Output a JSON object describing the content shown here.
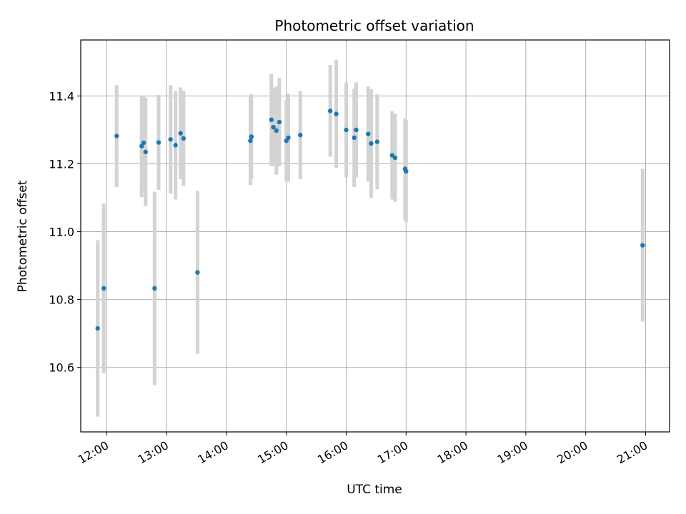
{
  "chart_data": {
    "type": "scatter",
    "title": "Photometric offset variation",
    "xlabel": "UTC time",
    "ylabel": "Photometric offset",
    "xlim": [
      "11:34",
      "21:24"
    ],
    "ylim": [
      10.41,
      11.565
    ],
    "x_ticks": [
      "12:00",
      "13:00",
      "14:00",
      "15:00",
      "16:00",
      "17:00",
      "18:00",
      "19:00",
      "20:00",
      "21:00"
    ],
    "y_ticks": [
      10.6,
      10.8,
      11.0,
      11.2,
      11.4
    ],
    "y_tick_labels": [
      "10.6",
      "10.8",
      "11.0",
      "11.2",
      "11.4"
    ],
    "grid": true,
    "colors": {
      "point": "#1f77b4",
      "errorbar": "#d3d3d3",
      "grid": "#b0b0b0"
    },
    "series": [
      {
        "points": [
          {
            "x": "11:51",
            "y": 10.715,
            "err": 0.26
          },
          {
            "x": "11:57",
            "y": 10.833,
            "err": 0.25
          },
          {
            "x": "12:10",
            "y": 11.282,
            "err": 0.15
          },
          {
            "x": "12:35",
            "y": 11.252,
            "err": 0.15
          },
          {
            "x": "12:37",
            "y": 11.262,
            "err": 0.14
          },
          {
            "x": "12:39",
            "y": 11.235,
            "err": 0.16
          },
          {
            "x": "12:48",
            "y": 10.833,
            "err": 0.285
          },
          {
            "x": "12:52",
            "y": 11.263,
            "err": 0.14
          },
          {
            "x": "13:04",
            "y": 11.272,
            "err": 0.16
          },
          {
            "x": "13:09",
            "y": 11.255,
            "err": 0.16
          },
          {
            "x": "13:14",
            "y": 11.29,
            "err": 0.135
          },
          {
            "x": "13:17",
            "y": 11.275,
            "err": 0.14
          },
          {
            "x": "13:31",
            "y": 10.88,
            "err": 0.24
          },
          {
            "x": "14:24",
            "y": 11.268,
            "err": 0.13
          },
          {
            "x": "14:25",
            "y": 11.28,
            "err": 0.125
          },
          {
            "x": "14:45",
            "y": 11.33,
            "err": 0.135
          },
          {
            "x": "14:47",
            "y": 11.308,
            "err": 0.115
          },
          {
            "x": "14:50",
            "y": 11.298,
            "err": 0.13
          },
          {
            "x": "14:53",
            "y": 11.323,
            "err": 0.13
          },
          {
            "x": "15:00",
            "y": 11.268,
            "err": 0.12
          },
          {
            "x": "15:02",
            "y": 11.277,
            "err": 0.13
          },
          {
            "x": "15:14",
            "y": 11.285,
            "err": 0.13
          },
          {
            "x": "15:44",
            "y": 11.356,
            "err": 0.135
          },
          {
            "x": "15:50",
            "y": 11.347,
            "err": 0.16
          },
          {
            "x": "16:00",
            "y": 11.3,
            "err": 0.14
          },
          {
            "x": "16:08",
            "y": 11.277,
            "err": 0.145
          },
          {
            "x": "16:10",
            "y": 11.3,
            "err": 0.14
          },
          {
            "x": "16:22",
            "y": 11.288,
            "err": 0.14
          },
          {
            "x": "16:25",
            "y": 11.26,
            "err": 0.16
          },
          {
            "x": "16:31",
            "y": 11.265,
            "err": 0.14
          },
          {
            "x": "16:46",
            "y": 11.225,
            "err": 0.13
          },
          {
            "x": "16:49",
            "y": 11.218,
            "err": 0.13
          },
          {
            "x": "16:59",
            "y": 11.185,
            "err": 0.15
          },
          {
            "x": "17:00",
            "y": 11.178,
            "err": 0.15
          },
          {
            "x": "20:57",
            "y": 10.96,
            "err": 0.225
          }
        ]
      }
    ]
  }
}
